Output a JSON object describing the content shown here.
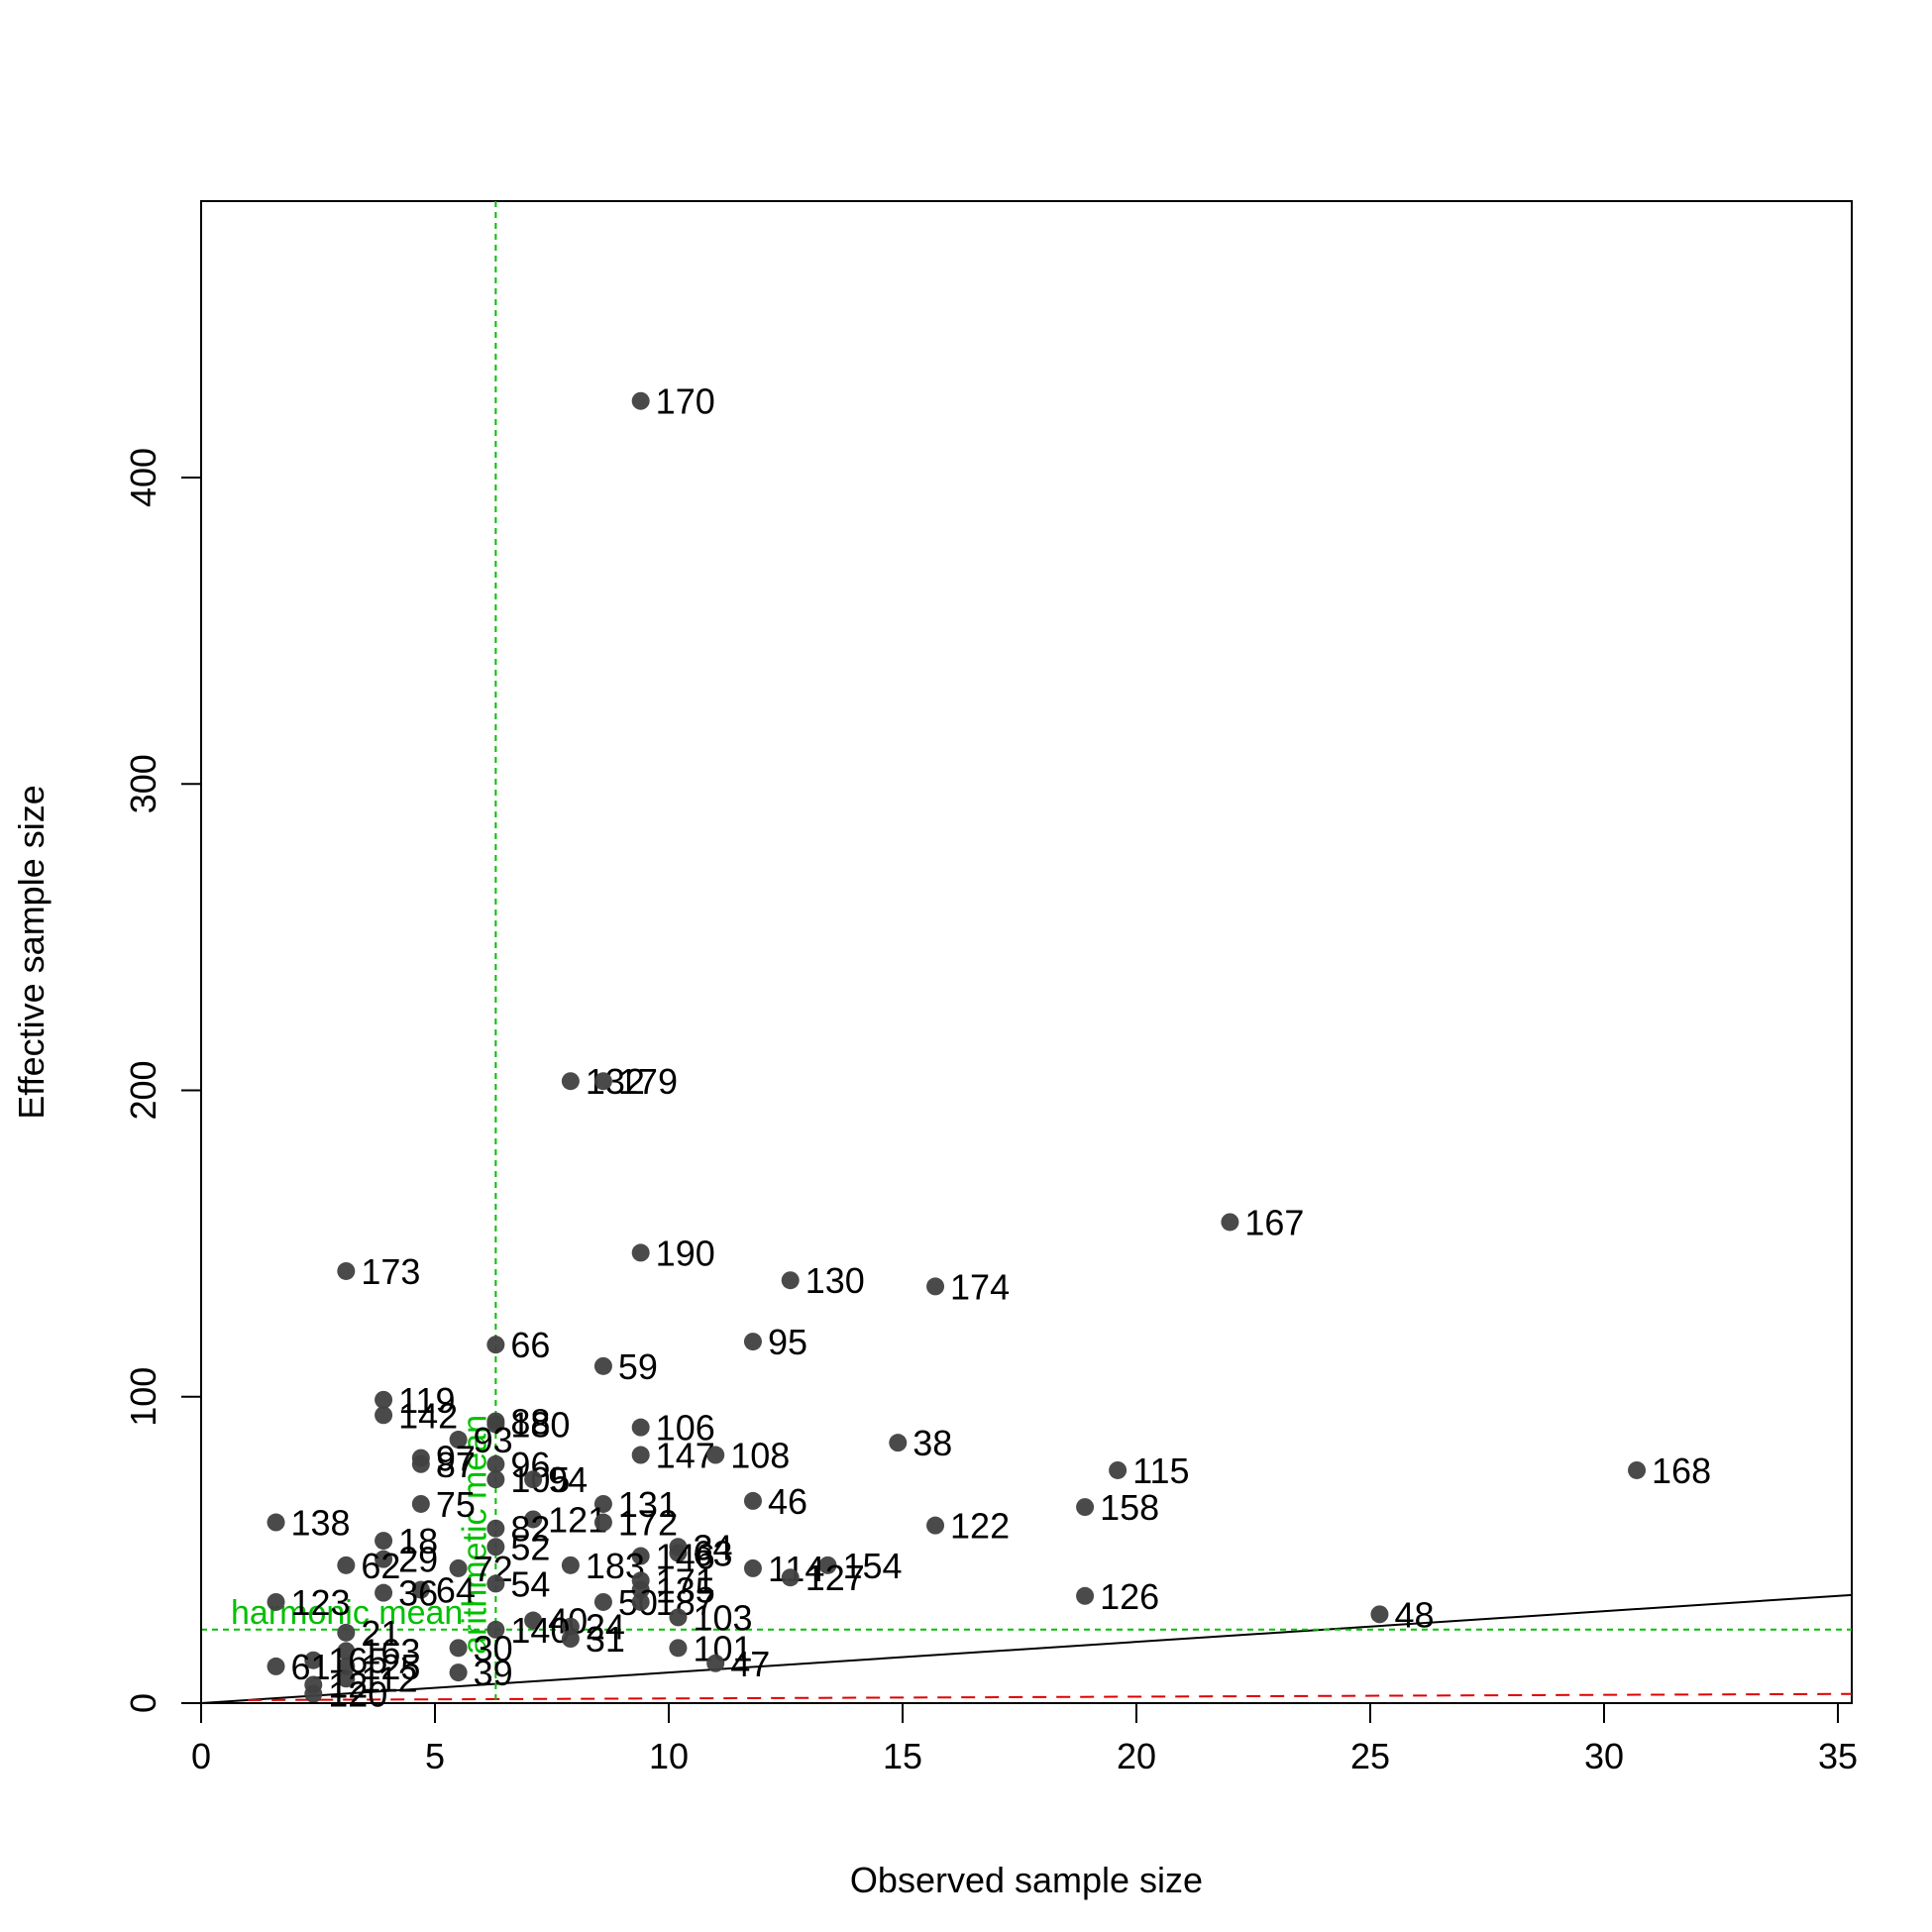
{
  "chart_data": {
    "type": "scatter",
    "title": "",
    "xlabel": "Observed sample size",
    "ylabel": "Effective sample size",
    "xlim": [
      0,
      35.3
    ],
    "ylim": [
      0,
      480
    ],
    "x_ticks": [
      0,
      5,
      10,
      15,
      20,
      25,
      30,
      35
    ],
    "y_ticks": [
      0,
      100,
      200,
      300,
      400
    ],
    "grid": false,
    "legend": "none",
    "colors": {
      "points": "#404040",
      "identity_line": "#000000",
      "reference": "#00c000",
      "dashed_baseline": "#e00000"
    },
    "reference_lines": {
      "arithmetic_mean": {
        "x": 6.3,
        "label": "arithmetic mean"
      },
      "harmonic_mean": {
        "y": 24,
        "label": "harmonic mean"
      }
    },
    "identity_line": {
      "from": [
        0,
        0
      ],
      "to": [
        35.3,
        35.3
      ]
    },
    "baseline_dashed": {
      "from": [
        1,
        1
      ],
      "to": [
        35.3,
        3
      ]
    },
    "points": [
      {
        "id": "170",
        "x": 9.4,
        "y": 425
      },
      {
        "id": "132",
        "x": 7.9,
        "y": 203
      },
      {
        "id": "179",
        "x": 8.6,
        "y": 203
      },
      {
        "id": "167",
        "x": 22.0,
        "y": 157
      },
      {
        "id": "190",
        "x": 9.4,
        "y": 147
      },
      {
        "id": "173",
        "x": 3.1,
        "y": 141
      },
      {
        "id": "130",
        "x": 12.6,
        "y": 138
      },
      {
        "id": "174",
        "x": 15.7,
        "y": 136
      },
      {
        "id": "95",
        "x": 11.8,
        "y": 118
      },
      {
        "id": "66",
        "x": 6.3,
        "y": 117
      },
      {
        "id": "59",
        "x": 8.6,
        "y": 110
      },
      {
        "id": "119",
        "x": 3.9,
        "y": 99
      },
      {
        "id": "142",
        "x": 3.9,
        "y": 94
      },
      {
        "id": "88",
        "x": 6.3,
        "y": 92
      },
      {
        "id": "180",
        "x": 6.3,
        "y": 91
      },
      {
        "id": "106",
        "x": 9.4,
        "y": 90
      },
      {
        "id": "93",
        "x": 5.5,
        "y": 86
      },
      {
        "id": "38",
        "x": 14.9,
        "y": 85
      },
      {
        "id": "147",
        "x": 9.4,
        "y": 81
      },
      {
        "id": "108",
        "x": 11.0,
        "y": 81
      },
      {
        "id": "97",
        "x": 4.7,
        "y": 80
      },
      {
        "id": "87",
        "x": 4.7,
        "y": 78
      },
      {
        "id": "96",
        "x": 6.3,
        "y": 78
      },
      {
        "id": "115",
        "x": 19.6,
        "y": 76
      },
      {
        "id": "168",
        "x": 30.7,
        "y": 76
      },
      {
        "id": "105",
        "x": 6.3,
        "y": 73
      },
      {
        "id": "94",
        "x": 7.1,
        "y": 73
      },
      {
        "id": "46",
        "x": 11.8,
        "y": 66
      },
      {
        "id": "75",
        "x": 4.7,
        "y": 65
      },
      {
        "id": "131",
        "x": 8.6,
        "y": 65
      },
      {
        "id": "158",
        "x": 18.9,
        "y": 64
      },
      {
        "id": "121",
        "x": 7.1,
        "y": 60
      },
      {
        "id": "138",
        "x": 1.6,
        "y": 59
      },
      {
        "id": "172",
        "x": 8.6,
        "y": 59
      },
      {
        "id": "122",
        "x": 15.7,
        "y": 58
      },
      {
        "id": "82",
        "x": 6.3,
        "y": 57
      },
      {
        "id": "18",
        "x": 3.9,
        "y": 53
      },
      {
        "id": "34",
        "x": 10.2,
        "y": 51
      },
      {
        "id": "52",
        "x": 6.3,
        "y": 51
      },
      {
        "id": "63",
        "x": 10.2,
        "y": 49
      },
      {
        "id": "146",
        "x": 9.4,
        "y": 48
      },
      {
        "id": "29",
        "x": 3.9,
        "y": 47
      },
      {
        "id": "154",
        "x": 13.4,
        "y": 45
      },
      {
        "id": "114",
        "x": 11.8,
        "y": 44
      },
      {
        "id": "62",
        "x": 3.1,
        "y": 45
      },
      {
        "id": "183",
        "x": 7.9,
        "y": 45
      },
      {
        "id": "72",
        "x": 5.5,
        "y": 44
      },
      {
        "id": "127",
        "x": 12.6,
        "y": 41
      },
      {
        "id": "171",
        "x": 9.4,
        "y": 40
      },
      {
        "id": "135",
        "x": 9.4,
        "y": 37
      },
      {
        "id": "64",
        "x": 4.7,
        "y": 37
      },
      {
        "id": "54",
        "x": 6.3,
        "y": 39
      },
      {
        "id": "36",
        "x": 3.9,
        "y": 36
      },
      {
        "id": "126",
        "x": 18.9,
        "y": 35
      },
      {
        "id": "50",
        "x": 8.6,
        "y": 33
      },
      {
        "id": "187",
        "x": 9.4,
        "y": 33
      },
      {
        "id": "123",
        "x": 1.6,
        "y": 33
      },
      {
        "id": "48",
        "x": 25.2,
        "y": 29
      },
      {
        "id": "103",
        "x": 10.2,
        "y": 28
      },
      {
        "id": "40",
        "x": 7.1,
        "y": 27
      },
      {
        "id": "24",
        "x": 7.9,
        "y": 25
      },
      {
        "id": "140",
        "x": 6.3,
        "y": 24
      },
      {
        "id": "21",
        "x": 3.1,
        "y": 23
      },
      {
        "id": "31",
        "x": 7.9,
        "y": 21
      },
      {
        "id": "101",
        "x": 10.2,
        "y": 18
      },
      {
        "id": "30",
        "x": 5.5,
        "y": 18
      },
      {
        "id": "163",
        "x": 3.1,
        "y": 17
      },
      {
        "id": "47",
        "x": 11.0,
        "y": 13
      },
      {
        "id": "125",
        "x": 3.1,
        "y": 12
      },
      {
        "id": "39",
        "x": 5.5,
        "y": 10
      },
      {
        "id": "165",
        "x": 2.4,
        "y": 14
      },
      {
        "id": "61",
        "x": 1.6,
        "y": 12
      },
      {
        "id": "112",
        "x": 3.1,
        "y": 8
      },
      {
        "id": "12",
        "x": 2.4,
        "y": 6
      },
      {
        "id": "120",
        "x": 2.4,
        "y": 3
      }
    ]
  }
}
